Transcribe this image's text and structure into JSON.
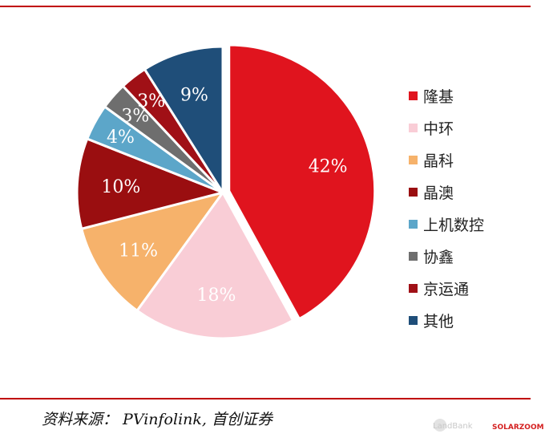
{
  "chart_data": {
    "type": "pie",
    "categories": [
      "隆基",
      "中环",
      "晶科",
      "晶澳",
      "上机数控",
      "协鑫",
      "京运通",
      "其他"
    ],
    "values": [
      42,
      18,
      11,
      10,
      4,
      3,
      3,
      9
    ],
    "labels": [
      "42%",
      "18%",
      "11%",
      "10%",
      "4%",
      "3%",
      "3%",
      "9%"
    ],
    "colors": [
      "#e0141e",
      "#f9cdd6",
      "#f6b26b",
      "#9a0e10",
      "#5ca6c9",
      "#6e6e6e",
      "#a01016",
      "#1f4e79"
    ],
    "exploded_first_slice": true,
    "legend_position": "right"
  },
  "source": "资料来源： PVinfolink, 首创证券",
  "watermark": {
    "text": "LandBank",
    "brand": "SOLARZOOM"
  }
}
